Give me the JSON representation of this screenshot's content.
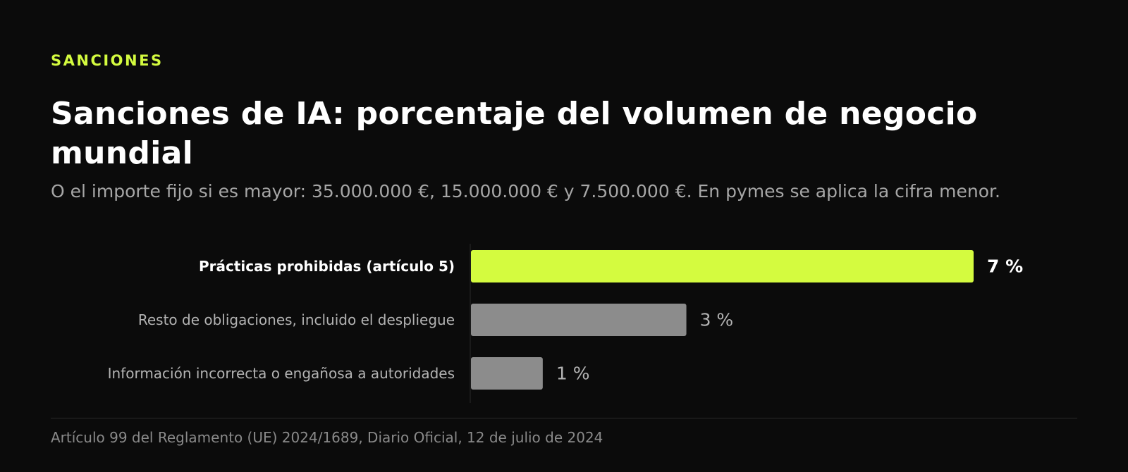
{
  "eyebrow": "SANCIONES",
  "chart_data": {
    "type": "bar",
    "orientation": "horizontal",
    "title": "Sanciones de IA: porcentaje del volumen de negocio mundial",
    "subtitle": "O el importe fijo si es mayor: 35.000.000 €, 15.000.000 € y 7.500.000 €. En pymes se aplica la cifra menor.",
    "categories": [
      "Prácticas prohibidas (artículo 5)",
      "Resto de obligaciones, incluido el despliegue",
      "Información incorrecta o engañosa a autoridades"
    ],
    "values": [
      7,
      3,
      1
    ],
    "value_labels": [
      "7 %",
      "3 %",
      "1 %"
    ],
    "xlim": [
      0,
      7
    ],
    "highlight_index": 0,
    "grid": false
  },
  "colors": {
    "background": "#0b0b0b",
    "highlight": "#d4fb3f",
    "bar": "#8c8c8c",
    "highlight_label": "#ffffff",
    "label": "#b3b3b3"
  },
  "source": "Artículo 99 del Reglamento (UE) 2024/1689, Diario Oficial, 12 de julio de 2024"
}
